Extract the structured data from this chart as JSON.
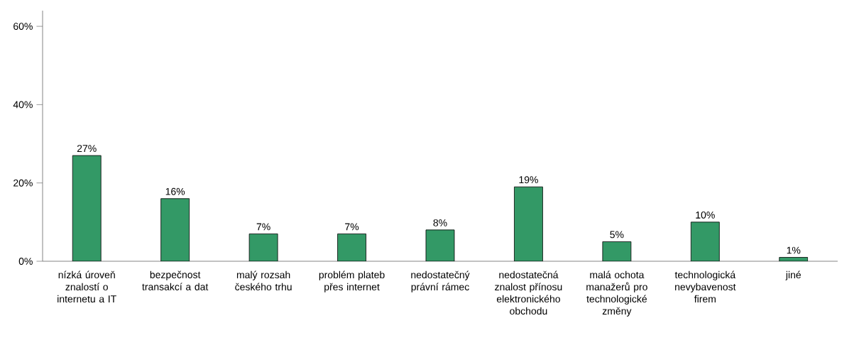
{
  "chart_data": {
    "type": "bar",
    "categories": [
      "nízká úroveň znalostí o internetu a IT",
      "bezpečnost transakcí a dat",
      "malý rozsah českého trhu",
      "problém plateb přes internet",
      "nedostatečný právní rámec",
      "nedostatečná znalost přínosu elektronického obchodu",
      "malá ochota manažerů pro technologické změny",
      "technologická nevybavenost firem",
      "jiné"
    ],
    "values": [
      27,
      16,
      7,
      7,
      8,
      19,
      5,
      10,
      1
    ],
    "value_labels": [
      "27%",
      "16%",
      "7%",
      "7%",
      "8%",
      "19%",
      "5%",
      "10%",
      "1%"
    ],
    "color": "#339966",
    "ylim": [
      0,
      64
    ],
    "yticks": [
      {
        "value": 0,
        "label": "0%"
      },
      {
        "value": 20,
        "label": "20%"
      },
      {
        "value": 40,
        "label": "40%"
      },
      {
        "value": 60,
        "label": "60%"
      }
    ],
    "grid": false
  }
}
